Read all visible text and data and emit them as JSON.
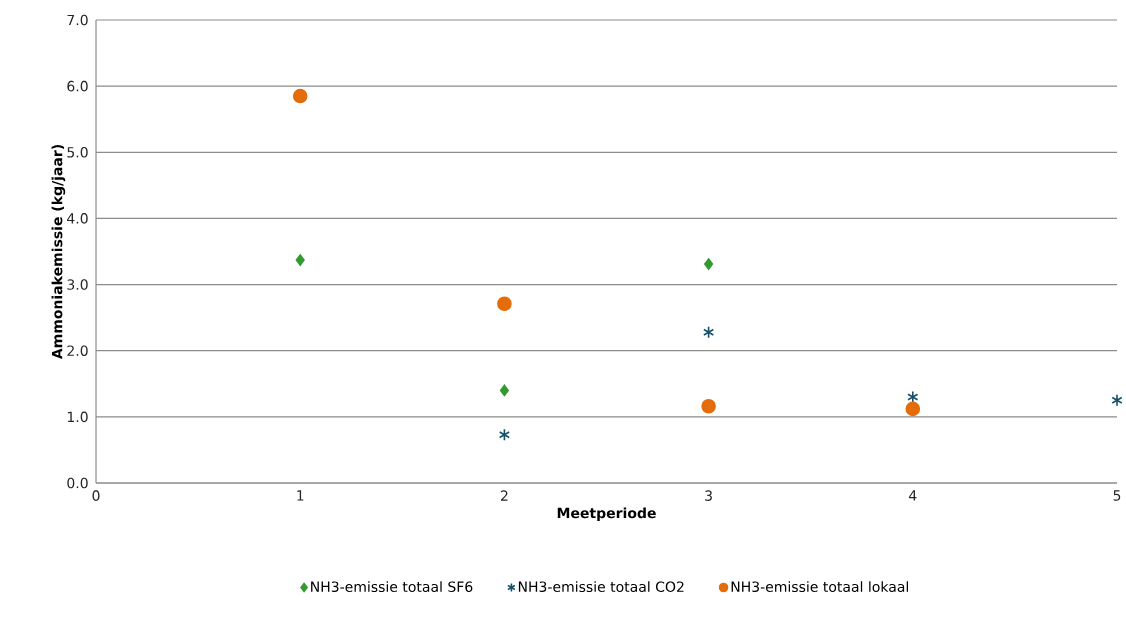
{
  "chart_data": {
    "type": "scatter",
    "xlabel": "Meetperiode",
    "ylabel": "Ammoniakemissie (kg/jaar)",
    "xlim": [
      0,
      5
    ],
    "xticks": [
      0,
      1,
      2,
      3,
      4,
      5
    ],
    "ylim": [
      0,
      7
    ],
    "yticks": [
      {
        "value": 0,
        "label": "0.0"
      },
      {
        "value": 1,
        "label": "1.0"
      },
      {
        "value": 2,
        "label": "2.0"
      },
      {
        "value": 3,
        "label": "3.0"
      },
      {
        "value": 4,
        "label": "4.0"
      },
      {
        "value": 5,
        "label": "5.0"
      },
      {
        "value": 6,
        "label": "6.0"
      },
      {
        "value": 7,
        "label": "7.0"
      }
    ],
    "grid": "y",
    "legend": "bottom",
    "series": [
      {
        "name": "NH3-emissie totaal SF6",
        "color": "#339a2e",
        "marker": "diamond",
        "x": [
          1,
          2,
          3
        ],
        "values": [
          3.37,
          1.4,
          3.31
        ]
      },
      {
        "name": "NH3-emissie totaal CO2",
        "color": "#17506b",
        "marker": "cross",
        "x": [
          2,
          3,
          4,
          5
        ],
        "values": [
          0.73,
          2.28,
          1.3,
          1.25
        ]
      },
      {
        "name": "NH3-emissie totaal lokaal",
        "color": "#e46c0a",
        "marker": "circle",
        "x": [
          1,
          2,
          3,
          4
        ],
        "values": [
          5.85,
          2.71,
          1.16,
          1.12
        ]
      }
    ]
  }
}
